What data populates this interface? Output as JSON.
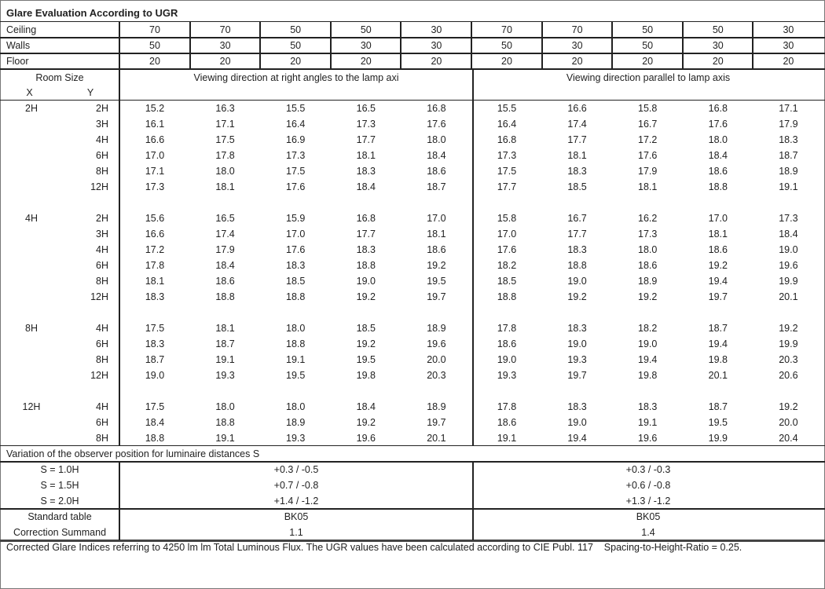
{
  "title": "Glare Evaluation According to UGR",
  "reflectances": [
    {
      "label": "Ceiling",
      "values": [
        "70",
        "70",
        "50",
        "50",
        "30",
        "70",
        "70",
        "50",
        "50",
        "30"
      ]
    },
    {
      "label": "Walls",
      "values": [
        "50",
        "30",
        "50",
        "30",
        "30",
        "50",
        "30",
        "50",
        "30",
        "30"
      ]
    },
    {
      "label": "Floor",
      "values": [
        "20",
        "20",
        "20",
        "20",
        "20",
        "20",
        "20",
        "20",
        "20",
        "20"
      ]
    }
  ],
  "header": {
    "room_size": "Room Size",
    "x": "X",
    "y": "Y",
    "right_angles": "Viewing direction at right angles to the lamp axi",
    "parallel": "Viewing direction parallel to lamp axis"
  },
  "groups": [
    {
      "x": "2H",
      "rows": [
        {
          "y": "2H",
          "values": [
            "15.2",
            "16.3",
            "15.5",
            "16.5",
            "16.8",
            "15.5",
            "16.6",
            "15.8",
            "16.8",
            "17.1"
          ]
        },
        {
          "y": "3H",
          "values": [
            "16.1",
            "17.1",
            "16.4",
            "17.3",
            "17.6",
            "16.4",
            "17.4",
            "16.7",
            "17.6",
            "17.9"
          ]
        },
        {
          "y": "4H",
          "values": [
            "16.6",
            "17.5",
            "16.9",
            "17.7",
            "18.0",
            "16.8",
            "17.7",
            "17.2",
            "18.0",
            "18.3"
          ]
        },
        {
          "y": "6H",
          "values": [
            "17.0",
            "17.8",
            "17.3",
            "18.1",
            "18.4",
            "17.3",
            "18.1",
            "17.6",
            "18.4",
            "18.7"
          ]
        },
        {
          "y": "8H",
          "values": [
            "17.1",
            "18.0",
            "17.5",
            "18.3",
            "18.6",
            "17.5",
            "18.3",
            "17.9",
            "18.6",
            "18.9"
          ]
        },
        {
          "y": "12H",
          "values": [
            "17.3",
            "18.1",
            "17.6",
            "18.4",
            "18.7",
            "17.7",
            "18.5",
            "18.1",
            "18.8",
            "19.1"
          ]
        }
      ]
    },
    {
      "x": "4H",
      "rows": [
        {
          "y": "2H",
          "values": [
            "15.6",
            "16.5",
            "15.9",
            "16.8",
            "17.0",
            "15.8",
            "16.7",
            "16.2",
            "17.0",
            "17.3"
          ]
        },
        {
          "y": "3H",
          "values": [
            "16.6",
            "17.4",
            "17.0",
            "17.7",
            "18.1",
            "17.0",
            "17.7",
            "17.3",
            "18.1",
            "18.4"
          ]
        },
        {
          "y": "4H",
          "values": [
            "17.2",
            "17.9",
            "17.6",
            "18.3",
            "18.6",
            "17.6",
            "18.3",
            "18.0",
            "18.6",
            "19.0"
          ]
        },
        {
          "y": "6H",
          "values": [
            "17.8",
            "18.4",
            "18.3",
            "18.8",
            "19.2",
            "18.2",
            "18.8",
            "18.6",
            "19.2",
            "19.6"
          ]
        },
        {
          "y": "8H",
          "values": [
            "18.1",
            "18.6",
            "18.5",
            "19.0",
            "19.5",
            "18.5",
            "19.0",
            "18.9",
            "19.4",
            "19.9"
          ]
        },
        {
          "y": "12H",
          "values": [
            "18.3",
            "18.8",
            "18.8",
            "19.2",
            "19.7",
            "18.8",
            "19.2",
            "19.2",
            "19.7",
            "20.1"
          ]
        }
      ]
    },
    {
      "x": "8H",
      "rows": [
        {
          "y": "4H",
          "values": [
            "17.5",
            "18.1",
            "18.0",
            "18.5",
            "18.9",
            "17.8",
            "18.3",
            "18.2",
            "18.7",
            "19.2"
          ]
        },
        {
          "y": "6H",
          "values": [
            "18.3",
            "18.7",
            "18.8",
            "19.2",
            "19.6",
            "18.6",
            "19.0",
            "19.0",
            "19.4",
            "19.9"
          ]
        },
        {
          "y": "8H",
          "values": [
            "18.7",
            "19.1",
            "19.1",
            "19.5",
            "20.0",
            "19.0",
            "19.3",
            "19.4",
            "19.8",
            "20.3"
          ]
        },
        {
          "y": "12H",
          "values": [
            "19.0",
            "19.3",
            "19.5",
            "19.8",
            "20.3",
            "19.3",
            "19.7",
            "19.8",
            "20.1",
            "20.6"
          ]
        }
      ]
    },
    {
      "x": "12H",
      "rows": [
        {
          "y": "4H",
          "values": [
            "17.5",
            "18.0",
            "18.0",
            "18.4",
            "18.9",
            "17.8",
            "18.3",
            "18.3",
            "18.7",
            "19.2"
          ]
        },
        {
          "y": "6H",
          "values": [
            "18.4",
            "18.8",
            "18.9",
            "19.2",
            "19.7",
            "18.6",
            "19.0",
            "19.1",
            "19.5",
            "20.0"
          ]
        },
        {
          "y": "8H",
          "values": [
            "18.8",
            "19.1",
            "19.3",
            "19.6",
            "20.1",
            "19.1",
            "19.4",
            "19.6",
            "19.9",
            "20.4"
          ]
        }
      ]
    }
  ],
  "variation": {
    "title": "Variation of the observer position for luminaire distances S",
    "rows": [
      {
        "label": "S = 1.0H",
        "right_angles": "+0.3 / -0.5",
        "parallel": "+0.3 / -0.3"
      },
      {
        "label": "S = 1.5H",
        "right_angles": "+0.7 / -0.8",
        "parallel": "+0.6 / -0.8"
      },
      {
        "label": "S = 2.0H",
        "right_angles": "+1.4 / -1.2",
        "parallel": "+1.3 / -1.2"
      }
    ]
  },
  "standard": {
    "rows": [
      {
        "label": "Standard table",
        "right_angles": "BK05",
        "parallel": "BK05"
      },
      {
        "label": "Correction Summand",
        "right_angles": "1.1",
        "parallel": "1.4"
      }
    ]
  },
  "footnote": "Corrected Glare Indices referring to 4250 lm lm Total Luminous Flux. The UGR values have been calculated according to CIE Publ. 117    Spacing-to-Height-Ratio = 0.25."
}
